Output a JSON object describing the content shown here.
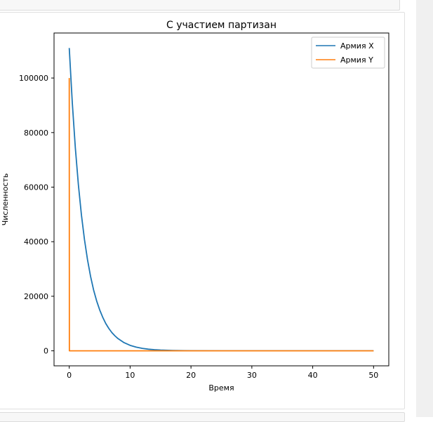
{
  "chart_data": {
    "type": "line",
    "title": "С участием партизан",
    "xlabel": "Время",
    "ylabel": "Численность",
    "xlim": [
      -2.5,
      52.5
    ],
    "ylim": [
      -5500,
      116500
    ],
    "xticks": [
      0,
      10,
      20,
      30,
      40,
      50
    ],
    "yticks": [
      0,
      20000,
      40000,
      60000,
      80000,
      100000
    ],
    "legend_position": "top-right",
    "grid": false,
    "series": [
      {
        "name": "Армия X",
        "color": "#1f77b4",
        "x": [
          0,
          0.5,
          1,
          1.5,
          2,
          2.5,
          3,
          3.5,
          4,
          4.5,
          5,
          5.5,
          6,
          6.5,
          7,
          7.5,
          8,
          9,
          10,
          11,
          12,
          13,
          14,
          15,
          17,
          20,
          25,
          30,
          35,
          40,
          45,
          50
        ],
        "y": [
          111000,
          90900,
          74400,
          60900,
          49800,
          40800,
          33400,
          27300,
          22300,
          18300,
          15000,
          12300,
          10000,
          8200,
          6700,
          5500,
          4500,
          3000,
          2000,
          1350,
          900,
          600,
          400,
          270,
          120,
          35,
          3,
          0,
          0,
          0,
          0,
          0
        ]
      },
      {
        "name": "Армия Y",
        "color": "#ff7f0e",
        "x": [
          0,
          0.02,
          50
        ],
        "y": [
          100000,
          0,
          0
        ]
      }
    ]
  }
}
